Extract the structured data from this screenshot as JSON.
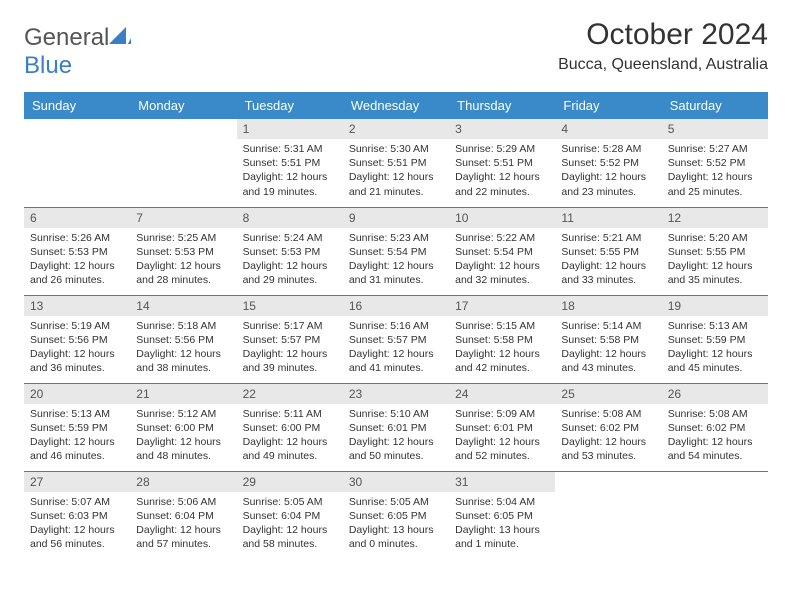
{
  "brand": {
    "name_a": "General",
    "name_b": "Blue"
  },
  "title": "October 2024",
  "location": "Bucca, Queensland, Australia",
  "day_headers": [
    "Sunday",
    "Monday",
    "Tuesday",
    "Wednesday",
    "Thursday",
    "Friday",
    "Saturday"
  ],
  "colors": {
    "header_bg": "#3a8ac9",
    "header_text": "#ffffff",
    "accent": "#3a7fc4",
    "daynum_bg": "#e8e8e8",
    "text": "#333333"
  },
  "weeks": [
    [
      null,
      null,
      {
        "n": "1",
        "sr": "Sunrise: 5:31 AM",
        "ss": "Sunset: 5:51 PM",
        "d1": "Daylight: 12 hours",
        "d2": "and 19 minutes."
      },
      {
        "n": "2",
        "sr": "Sunrise: 5:30 AM",
        "ss": "Sunset: 5:51 PM",
        "d1": "Daylight: 12 hours",
        "d2": "and 21 minutes."
      },
      {
        "n": "3",
        "sr": "Sunrise: 5:29 AM",
        "ss": "Sunset: 5:51 PM",
        "d1": "Daylight: 12 hours",
        "d2": "and 22 minutes."
      },
      {
        "n": "4",
        "sr": "Sunrise: 5:28 AM",
        "ss": "Sunset: 5:52 PM",
        "d1": "Daylight: 12 hours",
        "d2": "and 23 minutes."
      },
      {
        "n": "5",
        "sr": "Sunrise: 5:27 AM",
        "ss": "Sunset: 5:52 PM",
        "d1": "Daylight: 12 hours",
        "d2": "and 25 minutes."
      }
    ],
    [
      {
        "n": "6",
        "sr": "Sunrise: 5:26 AM",
        "ss": "Sunset: 5:53 PM",
        "d1": "Daylight: 12 hours",
        "d2": "and 26 minutes."
      },
      {
        "n": "7",
        "sr": "Sunrise: 5:25 AM",
        "ss": "Sunset: 5:53 PM",
        "d1": "Daylight: 12 hours",
        "d2": "and 28 minutes."
      },
      {
        "n": "8",
        "sr": "Sunrise: 5:24 AM",
        "ss": "Sunset: 5:53 PM",
        "d1": "Daylight: 12 hours",
        "d2": "and 29 minutes."
      },
      {
        "n": "9",
        "sr": "Sunrise: 5:23 AM",
        "ss": "Sunset: 5:54 PM",
        "d1": "Daylight: 12 hours",
        "d2": "and 31 minutes."
      },
      {
        "n": "10",
        "sr": "Sunrise: 5:22 AM",
        "ss": "Sunset: 5:54 PM",
        "d1": "Daylight: 12 hours",
        "d2": "and 32 minutes."
      },
      {
        "n": "11",
        "sr": "Sunrise: 5:21 AM",
        "ss": "Sunset: 5:55 PM",
        "d1": "Daylight: 12 hours",
        "d2": "and 33 minutes."
      },
      {
        "n": "12",
        "sr": "Sunrise: 5:20 AM",
        "ss": "Sunset: 5:55 PM",
        "d1": "Daylight: 12 hours",
        "d2": "and 35 minutes."
      }
    ],
    [
      {
        "n": "13",
        "sr": "Sunrise: 5:19 AM",
        "ss": "Sunset: 5:56 PM",
        "d1": "Daylight: 12 hours",
        "d2": "and 36 minutes."
      },
      {
        "n": "14",
        "sr": "Sunrise: 5:18 AM",
        "ss": "Sunset: 5:56 PM",
        "d1": "Daylight: 12 hours",
        "d2": "and 38 minutes."
      },
      {
        "n": "15",
        "sr": "Sunrise: 5:17 AM",
        "ss": "Sunset: 5:57 PM",
        "d1": "Daylight: 12 hours",
        "d2": "and 39 minutes."
      },
      {
        "n": "16",
        "sr": "Sunrise: 5:16 AM",
        "ss": "Sunset: 5:57 PM",
        "d1": "Daylight: 12 hours",
        "d2": "and 41 minutes."
      },
      {
        "n": "17",
        "sr": "Sunrise: 5:15 AM",
        "ss": "Sunset: 5:58 PM",
        "d1": "Daylight: 12 hours",
        "d2": "and 42 minutes."
      },
      {
        "n": "18",
        "sr": "Sunrise: 5:14 AM",
        "ss": "Sunset: 5:58 PM",
        "d1": "Daylight: 12 hours",
        "d2": "and 43 minutes."
      },
      {
        "n": "19",
        "sr": "Sunrise: 5:13 AM",
        "ss": "Sunset: 5:59 PM",
        "d1": "Daylight: 12 hours",
        "d2": "and 45 minutes."
      }
    ],
    [
      {
        "n": "20",
        "sr": "Sunrise: 5:13 AM",
        "ss": "Sunset: 5:59 PM",
        "d1": "Daylight: 12 hours",
        "d2": "and 46 minutes."
      },
      {
        "n": "21",
        "sr": "Sunrise: 5:12 AM",
        "ss": "Sunset: 6:00 PM",
        "d1": "Daylight: 12 hours",
        "d2": "and 48 minutes."
      },
      {
        "n": "22",
        "sr": "Sunrise: 5:11 AM",
        "ss": "Sunset: 6:00 PM",
        "d1": "Daylight: 12 hours",
        "d2": "and 49 minutes."
      },
      {
        "n": "23",
        "sr": "Sunrise: 5:10 AM",
        "ss": "Sunset: 6:01 PM",
        "d1": "Daylight: 12 hours",
        "d2": "and 50 minutes."
      },
      {
        "n": "24",
        "sr": "Sunrise: 5:09 AM",
        "ss": "Sunset: 6:01 PM",
        "d1": "Daylight: 12 hours",
        "d2": "and 52 minutes."
      },
      {
        "n": "25",
        "sr": "Sunrise: 5:08 AM",
        "ss": "Sunset: 6:02 PM",
        "d1": "Daylight: 12 hours",
        "d2": "and 53 minutes."
      },
      {
        "n": "26",
        "sr": "Sunrise: 5:08 AM",
        "ss": "Sunset: 6:02 PM",
        "d1": "Daylight: 12 hours",
        "d2": "and 54 minutes."
      }
    ],
    [
      {
        "n": "27",
        "sr": "Sunrise: 5:07 AM",
        "ss": "Sunset: 6:03 PM",
        "d1": "Daylight: 12 hours",
        "d2": "and 56 minutes."
      },
      {
        "n": "28",
        "sr": "Sunrise: 5:06 AM",
        "ss": "Sunset: 6:04 PM",
        "d1": "Daylight: 12 hours",
        "d2": "and 57 minutes."
      },
      {
        "n": "29",
        "sr": "Sunrise: 5:05 AM",
        "ss": "Sunset: 6:04 PM",
        "d1": "Daylight: 12 hours",
        "d2": "and 58 minutes."
      },
      {
        "n": "30",
        "sr": "Sunrise: 5:05 AM",
        "ss": "Sunset: 6:05 PM",
        "d1": "Daylight: 13 hours",
        "d2": "and 0 minutes."
      },
      {
        "n": "31",
        "sr": "Sunrise: 5:04 AM",
        "ss": "Sunset: 6:05 PM",
        "d1": "Daylight: 13 hours",
        "d2": "and 1 minute."
      },
      null,
      null
    ]
  ]
}
